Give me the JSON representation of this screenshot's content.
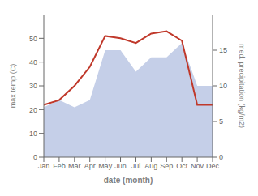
{
  "chart_data": {
    "type": "line",
    "xlabel": "date (month)",
    "ylabel": "max temp (C)",
    "y2label": "med. precipitation (kg/m2)",
    "categories": [
      "Jan",
      "Feb",
      "Mar",
      "Apr",
      "May",
      "Jun",
      "Jul",
      "Aug",
      "Sep",
      "Oct",
      "Nov",
      "Dec"
    ],
    "series": [
      {
        "type": "area",
        "color": "#c5cfe8",
        "axis": "y2",
        "values": [
          7,
          8,
          7,
          8,
          15,
          15,
          12,
          14,
          14,
          16,
          10,
          10
        ]
      },
      {
        "type": "line",
        "color": "#c0392b",
        "values": [
          22,
          24,
          30,
          38,
          51,
          50,
          48,
          52,
          53,
          49,
          22,
          22
        ]
      }
    ],
    "ylim": [
      0,
      60
    ],
    "yticks": [
      0,
      10,
      20,
      30,
      40,
      50
    ],
    "y2lim": [
      0,
      20
    ],
    "y2ticks": [
      0,
      5,
      10,
      15
    ],
    "grid": false
  }
}
